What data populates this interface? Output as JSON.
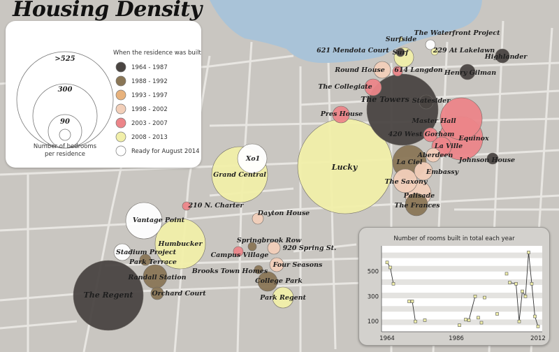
{
  "title": "Housing Density",
  "legend": {
    "size_labels": [
      ">525",
      "300",
      "90"
    ],
    "size_caption_line1": "Number of bedrooms",
    "size_caption_line2": "per residence",
    "color_heading": "When the residence was built",
    "periods": [
      {
        "label": "1964 - 1987",
        "color": "#4a4542"
      },
      {
        "label": "1988 - 1992",
        "color": "#8a7656"
      },
      {
        "label": "1993 - 1997",
        "color": "#e8b27c"
      },
      {
        "label": "1998 - 2002",
        "color": "#f2cfb9"
      },
      {
        "label": "2003 - 2007",
        "color": "#ec8589"
      },
      {
        "label": "2008 - 2013",
        "color": "#f1efa9"
      },
      {
        "label": "Ready for August 2014",
        "color": "#ffffff"
      }
    ]
  },
  "residences": [
    {
      "name": "Surfside",
      "period": 5
    },
    {
      "name": "The Waterfront Project",
      "period": 6
    },
    {
      "name": "621 Mendota Court",
      "period": 5
    },
    {
      "name": "Surf",
      "period": 0
    },
    {
      "name": "229 At Lakelawn",
      "period": 5
    },
    {
      "name": "Highlander",
      "period": 0
    },
    {
      "name": "Round House",
      "period": 3
    },
    {
      "name": "614 Langdon",
      "period": 4
    },
    {
      "name": "Henry Gilman",
      "period": 0
    },
    {
      "name": "The Collegiate",
      "period": 4
    },
    {
      "name": "The Towers",
      "period": 0
    },
    {
      "name": "Statesider",
      "period": 0
    },
    {
      "name": "Pres House",
      "period": 4
    },
    {
      "name": "Master Hall",
      "period": 4
    },
    {
      "name": "420 West Gorham",
      "period": 4
    },
    {
      "name": "Equinox",
      "period": 4
    },
    {
      "name": "La Ville",
      "period": 4
    },
    {
      "name": "Aberdeen",
      "period": 3
    },
    {
      "name": "Johnson House",
      "period": 0
    },
    {
      "name": "Xo1",
      "period": 6
    },
    {
      "name": "Grand Central",
      "period": 5
    },
    {
      "name": "Lucky",
      "period": 5
    },
    {
      "name": "La Ciel",
      "period": 1
    },
    {
      "name": "Embassy",
      "period": 3
    },
    {
      "name": "The Saxony",
      "period": 3
    },
    {
      "name": "Palisade",
      "period": 3
    },
    {
      "name": "The Frances",
      "period": 1
    },
    {
      "name": "210 N. Charter",
      "period": 4
    },
    {
      "name": "Dayton House",
      "period": 3
    },
    {
      "name": "Vantage Point",
      "period": 6
    },
    {
      "name": "Humbucker",
      "period": 5
    },
    {
      "name": "Springbrook Row",
      "period": 1
    },
    {
      "name": "Campus Village",
      "period": 4
    },
    {
      "name": "920 Spring St.",
      "period": 3
    },
    {
      "name": "Stadium Project",
      "period": 6
    },
    {
      "name": "Park Terrace",
      "period": 1
    },
    {
      "name": "Four Seasons",
      "period": 3
    },
    {
      "name": "Brooks Town Homes",
      "period": 1
    },
    {
      "name": "Randall Station",
      "period": 1
    },
    {
      "name": "College Park",
      "period": 1
    },
    {
      "name": "Orchard Court",
      "period": 1
    },
    {
      "name": "Park Regent",
      "period": 5
    },
    {
      "name": "The Regent",
      "period": 0
    }
  ],
  "chart_data": {
    "type": "line",
    "title": "Number of rooms built in total each year",
    "xlabel": "",
    "ylabel": "",
    "x_tick_labels": [
      "1964",
      "1986",
      "2012"
    ],
    "y_tick_labels": [
      "100",
      "300",
      "500"
    ],
    "xlim": [
      1964,
      2012
    ],
    "ylim": [
      40,
      680
    ],
    "grid": true,
    "series": [
      {
        "values": [
          [
            1964,
            570
          ],
          [
            1965,
            530
          ],
          [
            1966,
            400
          ],
          [
            1971,
            260
          ],
          [
            1972,
            260
          ],
          [
            1973,
            100
          ],
          [
            1976,
            110
          ],
          [
            1987,
            70
          ],
          [
            1989,
            115
          ],
          [
            1990,
            110
          ],
          [
            1992,
            300
          ],
          [
            1993,
            130
          ],
          [
            1994,
            90
          ],
          [
            1995,
            290
          ],
          [
            1999,
            160
          ],
          [
            2002,
            480
          ],
          [
            2003,
            410
          ],
          [
            2005,
            400
          ],
          [
            2006,
            100
          ],
          [
            2007,
            340
          ],
          [
            2008,
            300
          ],
          [
            2009,
            650
          ],
          [
            2010,
            400
          ],
          [
            2011,
            140
          ],
          [
            2012,
            60
          ]
        ]
      }
    ]
  }
}
